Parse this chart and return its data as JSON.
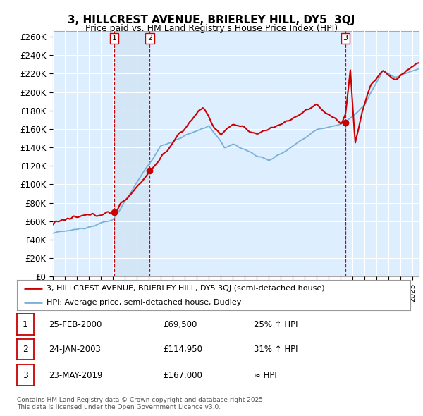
{
  "title": "3, HILLCREST AVENUE, BRIERLEY HILL, DY5  3QJ",
  "subtitle": "Price paid vs. HM Land Registry's House Price Index (HPI)",
  "ylabel_ticks": [
    "£0",
    "£20K",
    "£40K",
    "£60K",
    "£80K",
    "£100K",
    "£120K",
    "£140K",
    "£160K",
    "£180K",
    "£200K",
    "£220K",
    "£240K",
    "£260K"
  ],
  "ytick_values": [
    0,
    20000,
    40000,
    60000,
    80000,
    100000,
    120000,
    140000,
    160000,
    180000,
    200000,
    220000,
    240000,
    260000
  ],
  "xlim_start": 1995.0,
  "xlim_end": 2025.5,
  "ylim_min": 0,
  "ylim_max": 266000,
  "sale_dates": [
    2000.12,
    2003.07,
    2019.39
  ],
  "sale_prices": [
    69500,
    114950,
    167000
  ],
  "sale_labels": [
    "1",
    "2",
    "3"
  ],
  "vline_color": "#cc0000",
  "red_line_color": "#cc0000",
  "blue_line_color": "#7ab0d4",
  "shade_color": "#cce0f0",
  "background_color": "#ddeeff",
  "legend_entries": [
    "3, HILLCREST AVENUE, BRIERLEY HILL, DY5 3QJ (semi-detached house)",
    "HPI: Average price, semi-detached house, Dudley"
  ],
  "table_rows": [
    {
      "num": "1",
      "date": "25-FEB-2000",
      "price": "£69,500",
      "change": "25% ↑ HPI"
    },
    {
      "num": "2",
      "date": "24-JAN-2003",
      "price": "£114,950",
      "change": "31% ↑ HPI"
    },
    {
      "num": "3",
      "date": "23-MAY-2019",
      "price": "£167,000",
      "change": "≈ HPI"
    }
  ],
  "footnote": "Contains HM Land Registry data © Crown copyright and database right 2025.\nThis data is licensed under the Open Government Licence v3.0.",
  "grid_color": "#ffffff",
  "plot_bg": "#ddeeff"
}
